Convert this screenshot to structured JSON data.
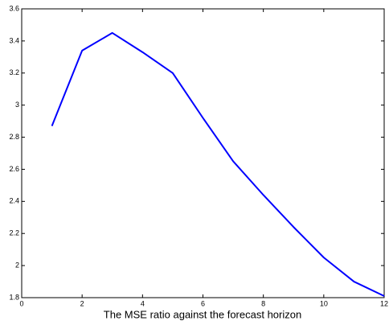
{
  "chart_data": {
    "type": "line",
    "xlabel": "The MSE ratio against the forecast horizon",
    "x": [
      1,
      2,
      3,
      4,
      5,
      6,
      7,
      8,
      9,
      10,
      11,
      12
    ],
    "series": [
      {
        "color": "#0000ff",
        "values": [
          2.87,
          3.34,
          3.45,
          3.33,
          3.2,
          2.92,
          2.65,
          2.44,
          2.24,
          2.05,
          1.9,
          1.81
        ]
      }
    ],
    "xlim": [
      0,
      12
    ],
    "xticks": [
      0,
      2,
      4,
      6,
      8,
      10,
      12
    ],
    "ylim": [
      1.8,
      3.6
    ],
    "yticks": [
      1.8,
      2,
      2.2,
      2.4,
      2.6,
      2.8,
      3,
      3.2,
      3.4,
      3.6
    ],
    "grid": false
  }
}
